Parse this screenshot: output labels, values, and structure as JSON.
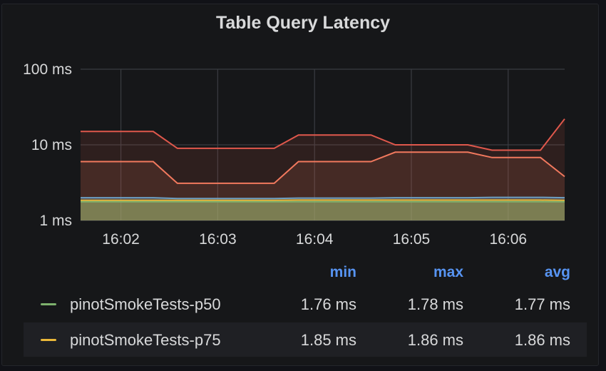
{
  "chart_data": {
    "type": "area",
    "title": "Table Query Latency",
    "y_scale": "log",
    "ylim": [
      1,
      100
    ],
    "y_ticks": [
      "100 ms",
      "10 ms",
      "1 ms"
    ],
    "y_tick_values": [
      100,
      10,
      1
    ],
    "x_ticks": [
      "16:02",
      "16:03",
      "16:04",
      "16:05",
      "16:06"
    ],
    "x": [
      "16:01:35",
      "16:01:50",
      "16:02:05",
      "16:02:20",
      "16:02:35",
      "16:02:50",
      "16:03:05",
      "16:03:20",
      "16:03:35",
      "16:03:50",
      "16:04:05",
      "16:04:20",
      "16:04:35",
      "16:04:50",
      "16:05:05",
      "16:05:20",
      "16:05:35",
      "16:05:50",
      "16:06:05",
      "16:06:20",
      "16:06:35"
    ],
    "series": [
      {
        "name": "",
        "color": "#e0584c",
        "values": [
          15,
          15,
          15,
          15,
          9,
          9,
          9,
          9,
          9,
          13.5,
          13.5,
          13.5,
          13.5,
          10,
          10,
          10,
          10,
          8.5,
          8.5,
          8.5,
          22
        ]
      },
      {
        "name": "",
        "color": "#f2795e",
        "values": [
          6,
          6,
          6,
          6,
          3.1,
          3.1,
          3.1,
          3.1,
          3.1,
          6,
          6,
          6,
          6,
          8,
          8,
          8,
          8,
          6.8,
          6.8,
          6.8,
          3.8
        ]
      },
      {
        "name": "",
        "color": "#6e9fc1",
        "values": [
          2.0,
          2.0,
          2.0,
          2.0,
          1.95,
          1.95,
          1.95,
          1.95,
          1.95,
          1.98,
          1.98,
          1.98,
          1.98,
          2.0,
          2.0,
          2.0,
          2.0,
          2.02,
          2.02,
          2.02,
          2.0
        ]
      },
      {
        "name": "pinotSmokeTests-p75",
        "color": "#eab839",
        "values": [
          1.85,
          1.85,
          1.85,
          1.85,
          1.85,
          1.85,
          1.85,
          1.85,
          1.85,
          1.86,
          1.86,
          1.86,
          1.86,
          1.86,
          1.86,
          1.86,
          1.86,
          1.86,
          1.86,
          1.86,
          1.85
        ]
      },
      {
        "name": "pinotSmokeTests-p50",
        "color": "#7eb26d",
        "values": [
          1.77,
          1.77,
          1.77,
          1.77,
          1.77,
          1.77,
          1.77,
          1.77,
          1.77,
          1.77,
          1.77,
          1.77,
          1.77,
          1.77,
          1.77,
          1.77,
          1.77,
          1.77,
          1.77,
          1.77,
          1.77
        ]
      }
    ],
    "legend_placement": "bottom",
    "grid": true
  },
  "legend": {
    "headers": {
      "min": "min",
      "max": "max",
      "avg": "avg"
    },
    "rows": [
      {
        "name": "pinotSmokeTests-p50",
        "color": "#7eb26d",
        "min": "1.76 ms",
        "max": "1.78 ms",
        "avg": "1.77 ms"
      },
      {
        "name": "pinotSmokeTests-p75",
        "color": "#eab839",
        "min": "1.85 ms",
        "max": "1.86 ms",
        "avg": "1.86 ms"
      }
    ]
  }
}
